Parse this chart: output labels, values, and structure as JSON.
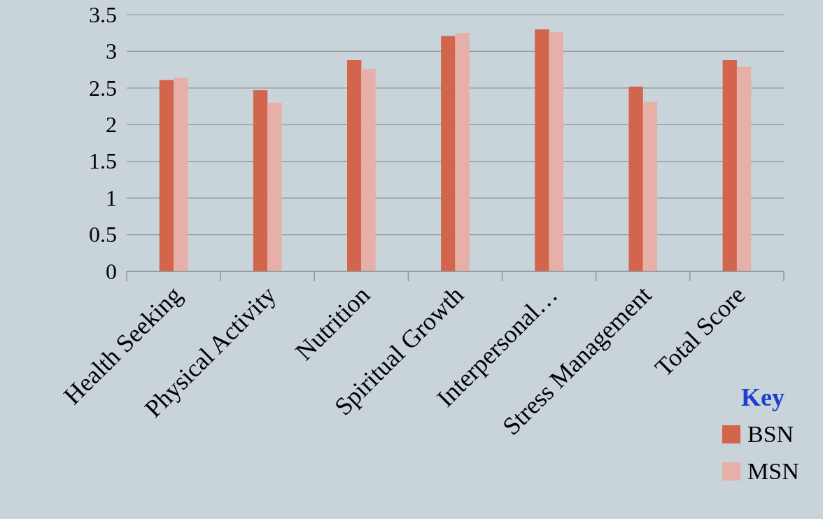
{
  "chart_data": {
    "type": "bar",
    "categories": [
      "Health Seeking",
      "Physical Activity",
      "Nutrition",
      "Spiritual Growth",
      "Interpersonal…",
      "Stress Management",
      "Total Score"
    ],
    "series": [
      {
        "name": "BSN",
        "color": "#d2654b",
        "values": [
          2.61,
          2.47,
          2.88,
          3.21,
          3.3,
          2.52,
          2.88
        ]
      },
      {
        "name": "MSN",
        "color": "#e6b0a8",
        "values": [
          2.64,
          2.3,
          2.76,
          3.25,
          3.26,
          2.31,
          2.79
        ]
      }
    ],
    "ylim": [
      0,
      3.5
    ],
    "yticks": [
      0,
      0.5,
      1,
      1.5,
      2,
      2.5,
      3,
      3.5
    ],
    "grid": "y",
    "legend": "bottom right",
    "legend_title": "Key"
  }
}
